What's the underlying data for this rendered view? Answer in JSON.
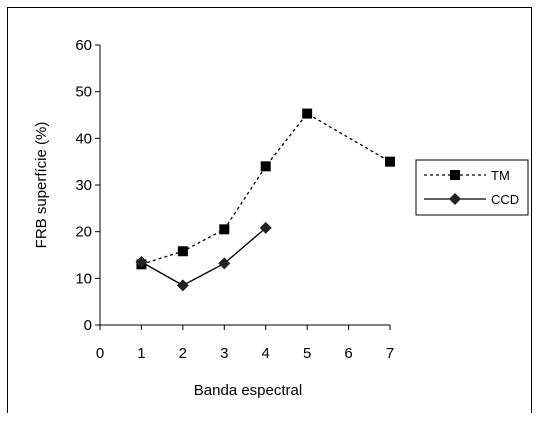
{
  "chart_data": {
    "type": "line",
    "xlabel": "Banda espectral",
    "ylabel": "FRB superfície (%)",
    "xlim": [
      0,
      7
    ],
    "ylim": [
      0,
      60
    ],
    "x_ticks": [
      "0",
      "1",
      "2",
      "3",
      "4",
      "5",
      "6",
      "7"
    ],
    "y_ticks": [
      "0",
      "10",
      "20",
      "30",
      "40",
      "50",
      "60"
    ],
    "x_tick_values": [
      0,
      1,
      2,
      3,
      4,
      5,
      6,
      7
    ],
    "y_tick_values": [
      0,
      10,
      20,
      30,
      40,
      50,
      60
    ],
    "grid": false,
    "legend_position": "right",
    "series": [
      {
        "name": "TM",
        "marker": "square",
        "line_style": "dashed",
        "color": "#000000",
        "x": [
          1,
          2,
          3,
          4,
          5,
          7
        ],
        "values": [
          13,
          15.8,
          20.5,
          34,
          45.3,
          35
        ]
      },
      {
        "name": "CCD",
        "marker": "diamond",
        "line_style": "solid",
        "color": "#000000",
        "x": [
          1,
          2,
          3,
          4
        ],
        "values": [
          13.5,
          8.5,
          13.2,
          20.8
        ]
      }
    ]
  }
}
